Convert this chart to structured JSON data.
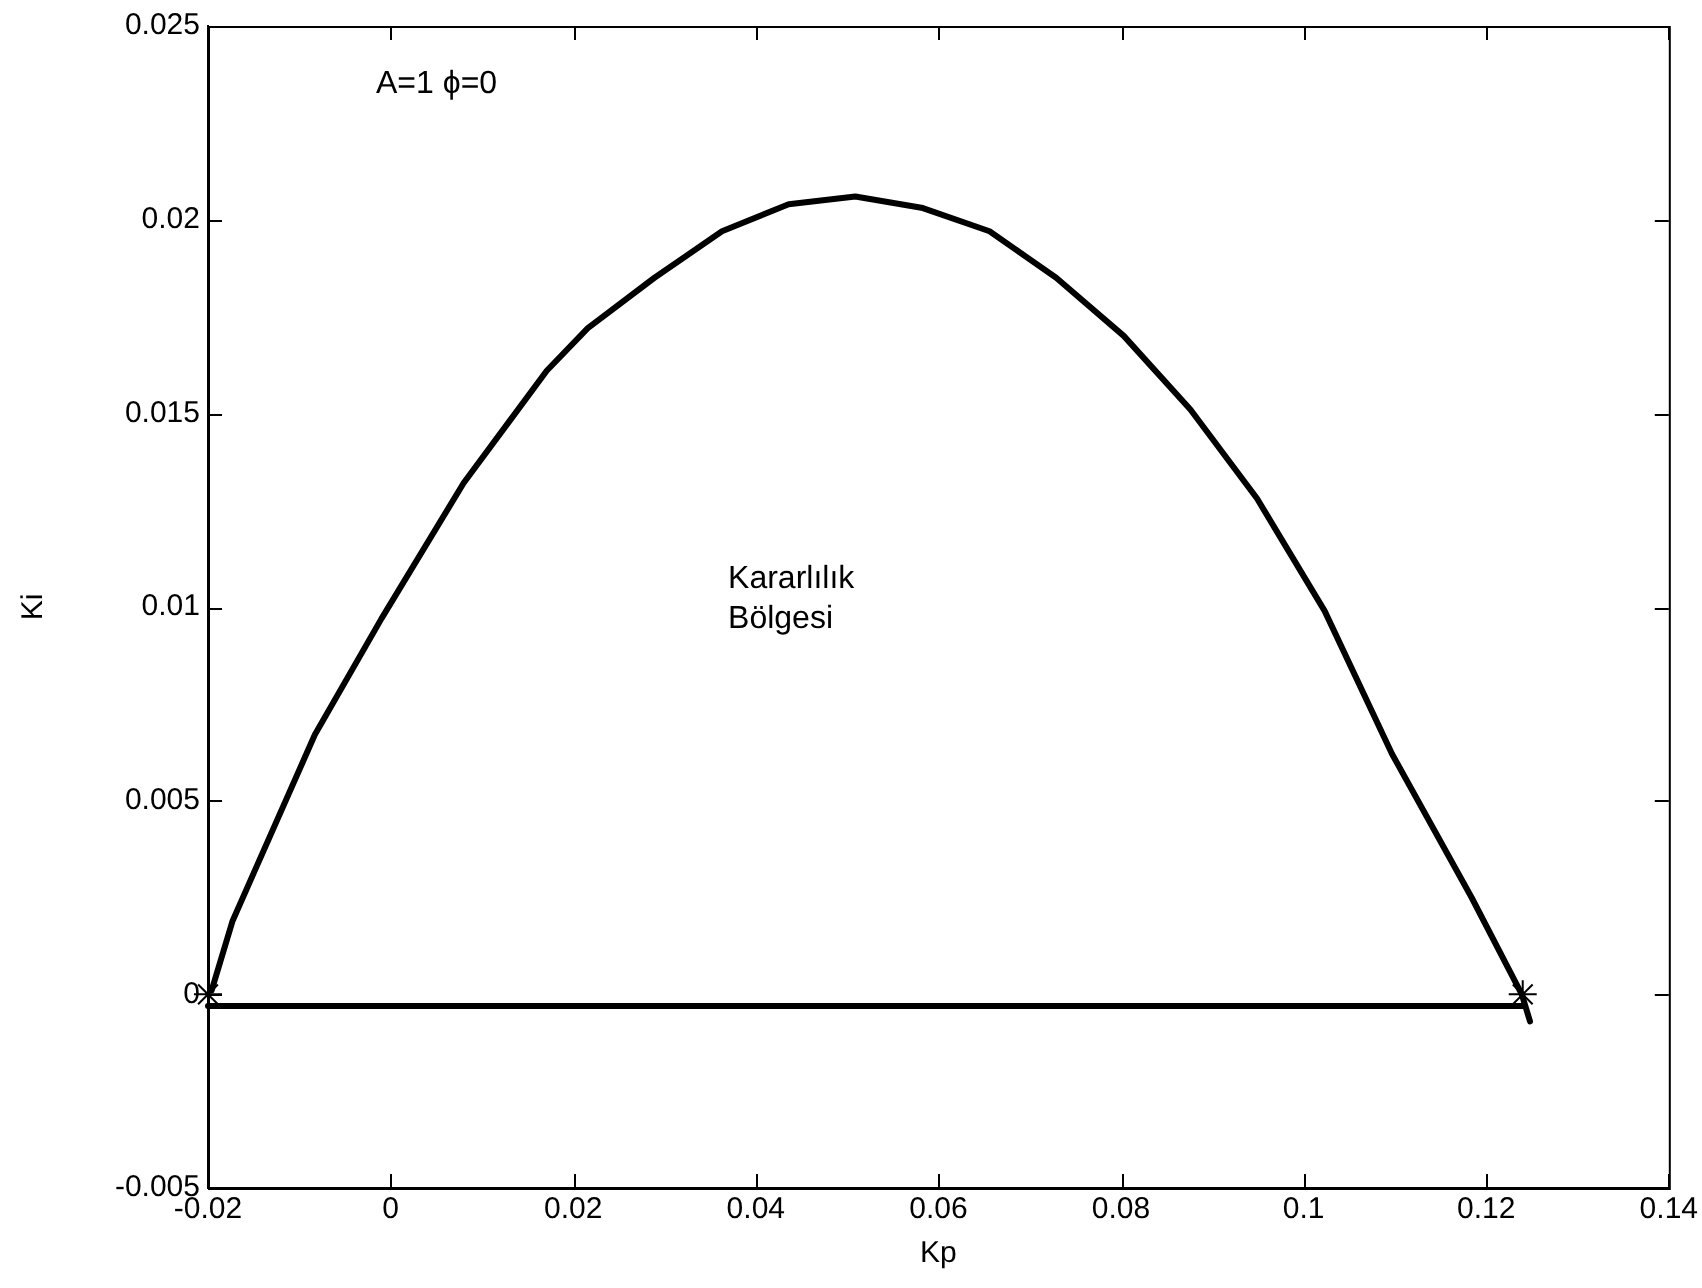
{
  "chart_data": {
    "type": "line",
    "xlabel": "Kp",
    "ylabel": "Ki",
    "annotations": [
      "A=1 ϕ=0",
      "Kararlılık\nBölgesi"
    ],
    "xlim": [
      -0.02,
      0.14
    ],
    "xticks": [
      -0.02,
      0,
      0.02,
      0.04,
      0.06,
      0.08,
      0.1,
      0.12,
      0.14
    ],
    "ylim": [
      -0.005,
      0.025
    ],
    "yticks": [
      -0.005,
      0,
      0.005,
      0.01,
      0.015,
      0.02,
      0.025
    ],
    "grid": false,
    "legend": false,
    "series": [
      {
        "type": "line",
        "color": "#000000",
        "marker": "none",
        "x": [
          -0.0196,
          -0.0173,
          -0.0083,
          -0.001,
          0.008,
          0.0171,
          0.0216,
          0.0289,
          0.0363,
          0.0436,
          0.0509,
          0.0583,
          0.0656,
          0.0729,
          0.0803,
          0.0876,
          0.0949,
          0.1023,
          0.1097,
          0.1184,
          0.1239,
          0.1248
        ],
        "values": [
          0.0001,
          0.0019,
          0.0067,
          0.0097,
          0.0132,
          0.0161,
          0.0172,
          0.0185,
          0.0197,
          0.0204,
          0.0206,
          0.0203,
          0.0197,
          0.0185,
          0.017,
          0.0151,
          0.0128,
          0.0099,
          0.0062,
          0.0025,
          0,
          -0.0007
        ]
      },
      {
        "type": "line",
        "color": "#000000",
        "marker": "none",
        "x": [
          -0.02,
          0.124
        ],
        "values": [
          -0.0003,
          -0.0003
        ]
      },
      {
        "type": "scatter",
        "color": "#000000",
        "marker": "cross",
        "x": [
          -0.02,
          0.124
        ],
        "values": [
          0,
          0
        ]
      }
    ]
  }
}
